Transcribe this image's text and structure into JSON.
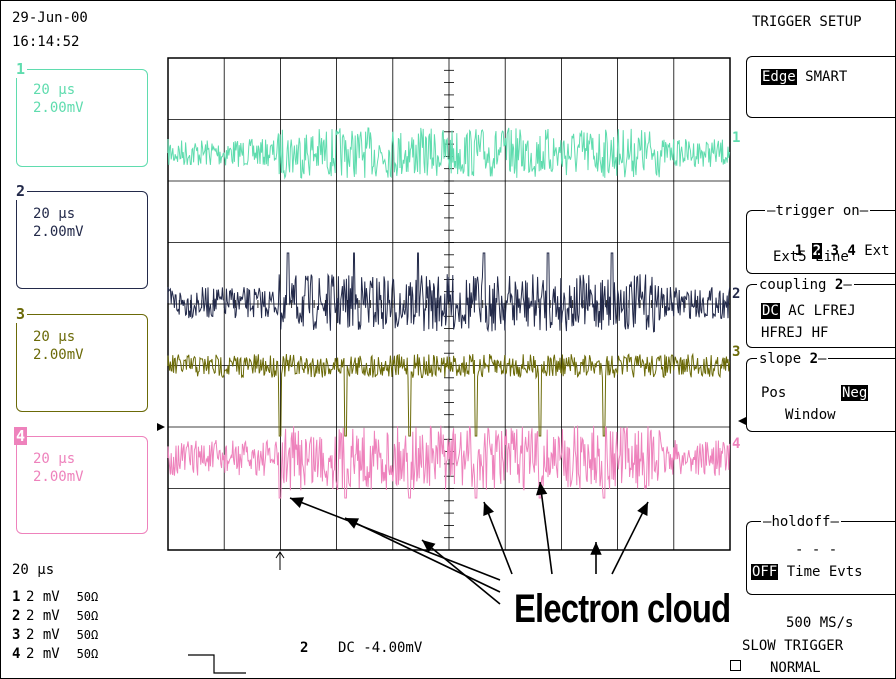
{
  "header": {
    "date": "29-Jun-00",
    "time": "16:14:52",
    "menu_title": "TRIGGER SETUP"
  },
  "channels": [
    {
      "num": "1",
      "timebase": "20 µs",
      "volts": "2.00mV",
      "color": "#5fdcae"
    },
    {
      "num": "2",
      "timebase": "20 µs",
      "volts": "2.00mV",
      "color": "#232a4a"
    },
    {
      "num": "3",
      "timebase": "20 µs",
      "volts": "2.00mV",
      "color": "#6b6a08"
    },
    {
      "num": "4",
      "timebase": "20 µs",
      "volts": "2.00mV",
      "color": "#ee82bc"
    }
  ],
  "trace_labels": [
    "1",
    "2",
    "3",
    "4"
  ],
  "trigger_menu": {
    "mode_selected": "Edge",
    "mode_other": "SMART",
    "trigger_on_title": "trigger on",
    "trigger_sources": [
      "1",
      "2",
      "3",
      "4"
    ],
    "trigger_source_selected": "2",
    "trigger_ext": "Ext",
    "trigger_ext2": "Ext5 Line",
    "coupling_title": "coupling",
    "coupling_channel": "2",
    "coupling_selected": "DC",
    "coupling_row1": "AC LFREJ",
    "coupling_row2": "HFREJ HF",
    "slope_title": "slope",
    "slope_channel": "2",
    "slope_pos": "Pos",
    "slope_neg": "Neg",
    "slope_window": "Window",
    "holdoff_title": "holdoff",
    "holdoff_value": "- - -",
    "holdoff_selected": "OFF",
    "holdoff_other": "Time Evts"
  },
  "status": {
    "timebase": "20 µs",
    "channels": [
      {
        "num": "1",
        "volts": "2 mV",
        "impedance": "50Ω"
      },
      {
        "num": "2",
        "volts": "2 mV",
        "impedance": "50Ω"
      },
      {
        "num": "3",
        "volts": "2 mV",
        "impedance": "50Ω"
      },
      {
        "num": "4",
        "volts": "2 mV",
        "impedance": "50Ω"
      }
    ],
    "trigger_channel": "2",
    "trigger_level": "DC -4.00mV",
    "sample_rate": "500 MS/s",
    "trigger_mode": "SLOW TRIGGER",
    "acq_mode": "NORMAL"
  },
  "annotation": {
    "label": "Electron cloud"
  }
}
